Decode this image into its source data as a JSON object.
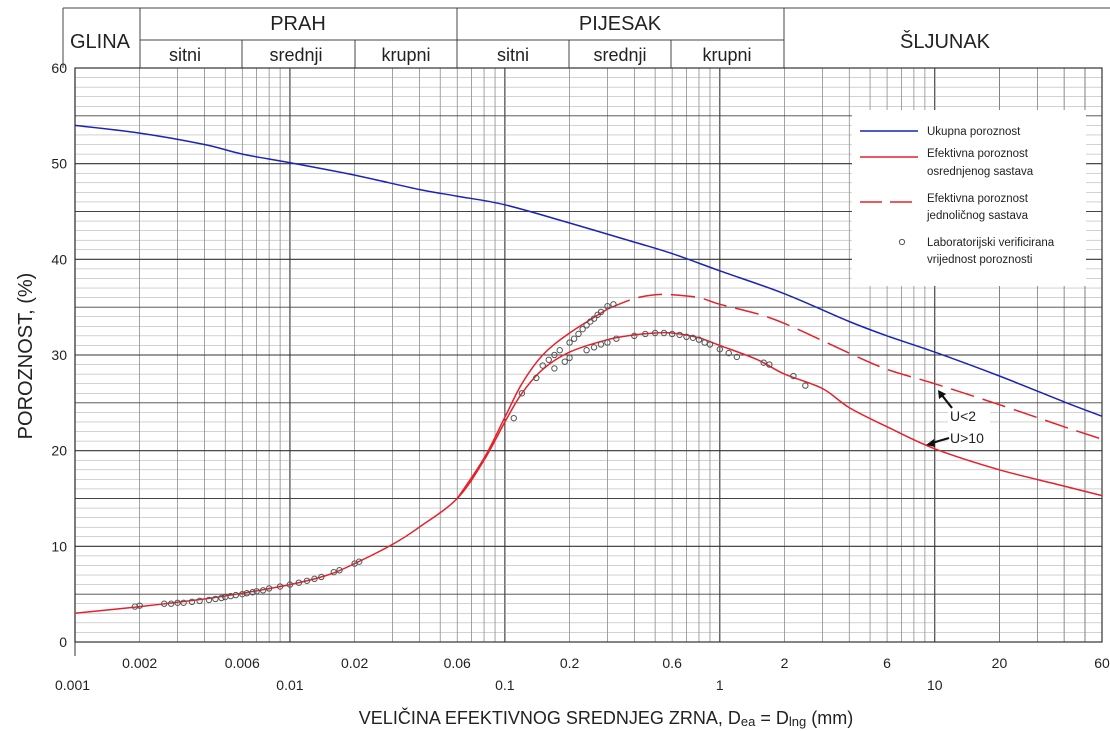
{
  "header": {
    "glina": "GLINA",
    "prah": "PRAH",
    "pijesak": "PIJESAK",
    "sljunak": "ŠLJUNAK",
    "prah_sub": [
      "sitni",
      "srednji",
      "krupni"
    ],
    "pijesak_sub": [
      "sitni",
      "srednji",
      "krupni"
    ]
  },
  "chart_data": {
    "type": "line",
    "xscale": "log",
    "xlim": [
      0.001,
      60
    ],
    "ylim": [
      0,
      60
    ],
    "xlabel": "VELIČINA EFEKTIVNOG SREDNJEG ZRNA, D",
    "xlabel_sub1": "ea",
    "xlabel_mid": " = D",
    "xlabel_sub2": "lng",
    "xlabel_end": " (mm)",
    "ylabel": "POROZNOST, (%)",
    "yticks": [
      0,
      10,
      20,
      30,
      40,
      50,
      60
    ],
    "xticks_upper": [
      "0.002",
      "0.006",
      "0.02",
      "0.06",
      "0.2",
      "0.6",
      "2",
      "6",
      "20",
      "60"
    ],
    "xticks_lower": [
      "0.001",
      "0.01",
      "0.1",
      "1",
      "10"
    ],
    "xticks_upper_values": [
      0.002,
      0.006,
      0.02,
      0.06,
      0.2,
      0.6,
      2,
      6,
      20,
      60
    ],
    "xticks_lower_values": [
      0.001,
      0.01,
      0.1,
      1,
      10
    ],
    "colors": {
      "blue": "#1a24b8",
      "red": "#e8202a",
      "grid": "#555555",
      "marker": "#555555"
    },
    "legend": {
      "position": "top-right",
      "entries": [
        {
          "label_lines": [
            "Ukupna poroznost"
          ],
          "style": "blue-solid"
        },
        {
          "label_lines": [
            "Efektivna poroznost",
            "osrednjenog sastava"
          ],
          "style": "red-solid"
        },
        {
          "label_lines": [
            "Efektivna poroznost",
            "jednoličnog sastava"
          ],
          "style": "red-dashed"
        },
        {
          "label_lines": [
            "Laboratorijski verificirana",
            "vrijednost poroznosti"
          ],
          "style": "circle-marker"
        }
      ]
    },
    "annotations": [
      "U<2",
      "U>10"
    ],
    "series": [
      {
        "name": "Ukupna poroznost",
        "style": "blue-solid",
        "x": [
          0.001,
          0.002,
          0.004,
          0.006,
          0.01,
          0.02,
          0.04,
          0.06,
          0.1,
          0.2,
          0.4,
          0.6,
          1,
          2,
          4,
          6,
          10,
          20,
          40,
          60
        ],
        "y": [
          54,
          53.2,
          52,
          51,
          50.1,
          48.8,
          47.3,
          46.6,
          45.7,
          43.8,
          41.8,
          40.6,
          38.8,
          36.4,
          33.5,
          32,
          30.3,
          27.8,
          25.1,
          23.6
        ]
      },
      {
        "name": "Efektivna poroznost osrednjenog sastava",
        "style": "red-solid",
        "x": [
          0.001,
          0.002,
          0.004,
          0.006,
          0.01,
          0.015,
          0.02,
          0.03,
          0.04,
          0.06,
          0.08,
          0.1,
          0.12,
          0.15,
          0.2,
          0.3,
          0.4,
          0.5,
          0.6,
          0.8,
          1,
          1.5,
          2,
          3,
          4,
          6,
          10,
          20,
          40,
          60
        ],
        "y": [
          3,
          3.7,
          4.5,
          5.1,
          6,
          7,
          8.2,
          10.2,
          12,
          15,
          19,
          23,
          26,
          28.5,
          30.3,
          31.6,
          32.1,
          32.3,
          32.3,
          31.8,
          31,
          29.5,
          28,
          26.5,
          24.5,
          22.5,
          20.2,
          18,
          16.3,
          15.3
        ]
      },
      {
        "name": "Efektivna poroznost jednoličnog sastava",
        "style": "red-dashed",
        "x": [
          0.001,
          0.002,
          0.004,
          0.006,
          0.01,
          0.015,
          0.02,
          0.03,
          0.04,
          0.06,
          0.08,
          0.1,
          0.12,
          0.15,
          0.2,
          0.3,
          0.4,
          0.5,
          0.6,
          0.8,
          1,
          1.5,
          2,
          3,
          4,
          6,
          10,
          20,
          40,
          60
        ],
        "y": [
          3,
          3.7,
          4.5,
          5.1,
          6,
          7,
          8.2,
          10.2,
          12,
          15,
          19.2,
          23.5,
          27,
          30,
          32.3,
          34.8,
          35.9,
          36.3,
          36.3,
          36,
          35.3,
          34.3,
          33.3,
          31.5,
          30.2,
          28.5,
          27,
          24.8,
          22.5,
          21.2
        ]
      },
      {
        "name": "Laboratorijski verificirana vrijednost poroznosti",
        "style": "circle-marker",
        "x": [
          0.0019,
          0.002,
          0.0026,
          0.0028,
          0.003,
          0.0032,
          0.0035,
          0.0038,
          0.0042,
          0.0045,
          0.0048,
          0.005,
          0.0053,
          0.0056,
          0.006,
          0.0063,
          0.0067,
          0.007,
          0.0075,
          0.008,
          0.009,
          0.01,
          0.011,
          0.012,
          0.013,
          0.014,
          0.016,
          0.017,
          0.02,
          0.021,
          0.11,
          0.12,
          0.14,
          0.15,
          0.16,
          0.17,
          0.18,
          0.2,
          0.21,
          0.22,
          0.23,
          0.24,
          0.25,
          0.26,
          0.27,
          0.28,
          0.3,
          0.32,
          0.17,
          0.19,
          0.2,
          0.24,
          0.26,
          0.28,
          0.3,
          0.33,
          0.4,
          0.45,
          0.5,
          0.55,
          0.6,
          0.65,
          0.7,
          0.75,
          0.8,
          0.85,
          0.9,
          1,
          1.1,
          1.2,
          1.6,
          1.7,
          2.2,
          2.5
        ],
        "y": [
          3.7,
          3.8,
          4.0,
          4.0,
          4.1,
          4.1,
          4.2,
          4.3,
          4.4,
          4.5,
          4.6,
          4.7,
          4.8,
          4.9,
          5.0,
          5.1,
          5.2,
          5.3,
          5.4,
          5.6,
          5.8,
          6.0,
          6.2,
          6.4,
          6.6,
          6.8,
          7.3,
          7.5,
          8.2,
          8.4,
          23.4,
          26,
          27.6,
          28.9,
          29.5,
          30,
          30.5,
          31.3,
          31.7,
          32.2,
          32.7,
          33.1,
          33.5,
          33.8,
          34.2,
          34.5,
          35.1,
          35.3,
          28.6,
          29.3,
          29.7,
          30.5,
          30.8,
          31.1,
          31.3,
          31.7,
          32,
          32.2,
          32.3,
          32.3,
          32.2,
          32.1,
          31.9,
          31.8,
          31.6,
          31.3,
          31.1,
          30.6,
          30.2,
          29.8,
          29.2,
          29,
          27.8,
          26.8
        ]
      }
    ]
  }
}
